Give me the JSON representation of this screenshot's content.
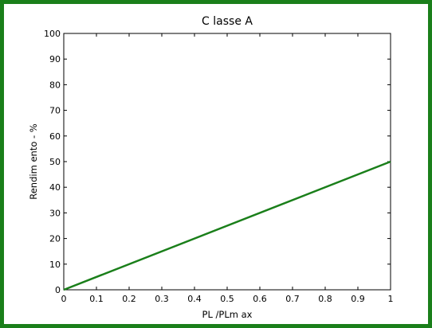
{
  "chart_data": {
    "type": "line",
    "title": "C lasse A",
    "xlabel": "PL /PLm ax",
    "ylabel": "Rendim ento - %",
    "xlim": [
      0,
      1
    ],
    "ylim": [
      0,
      100
    ],
    "xticks": [
      "0",
      "0.1",
      "0.2",
      "0.3",
      "0.4",
      "0.5",
      "0.6",
      "0.7",
      "0.8",
      "0.9",
      "1"
    ],
    "yticks": [
      "0",
      "10",
      "20",
      "30",
      "40",
      "50",
      "60",
      "70",
      "80",
      "90",
      "100"
    ],
    "grid": false,
    "series": [
      {
        "x": [
          0,
          1
        ],
        "y": [
          0,
          50
        ],
        "color": "#1a7f1a"
      }
    ]
  },
  "colors": {
    "frame": "#1a7f1a",
    "line": "#1a7f1a"
  }
}
